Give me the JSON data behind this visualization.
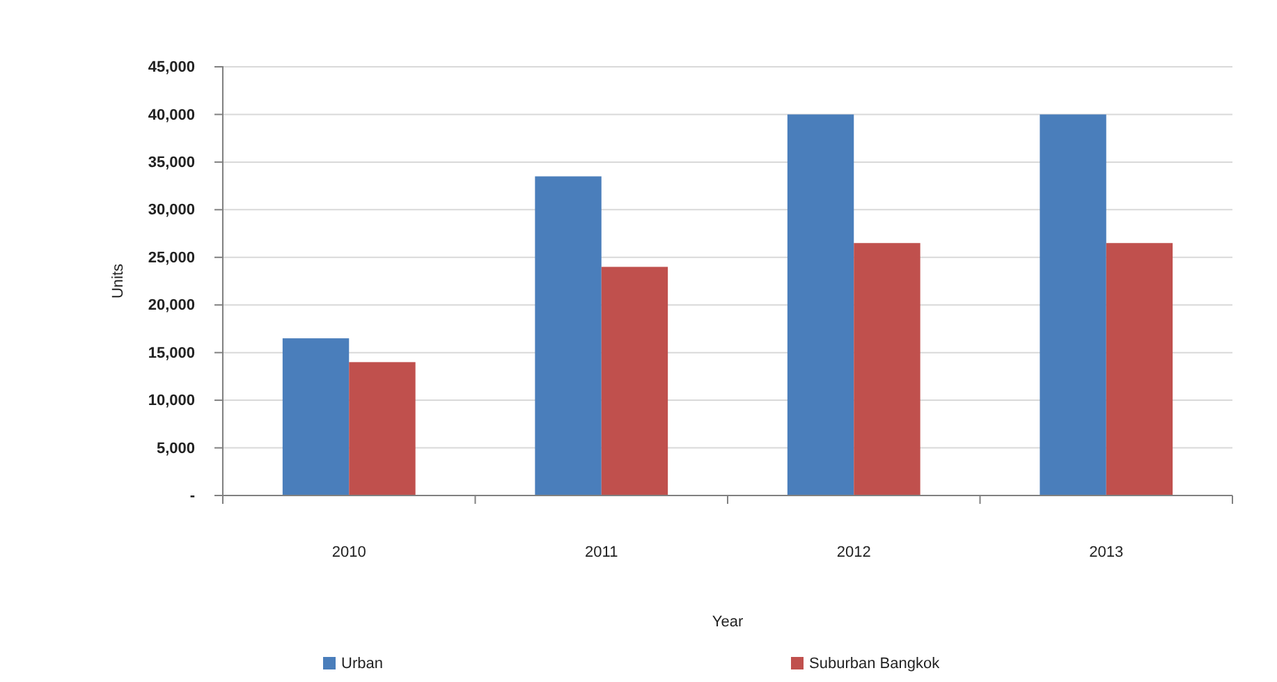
{
  "chart_data": {
    "type": "bar",
    "xlabel": "Year",
    "ylabel": "Units",
    "categories": [
      "2010",
      "2011",
      "2012",
      "2013"
    ],
    "series": [
      {
        "name": "Urban",
        "color": "#4a7ebb",
        "values": [
          16500,
          33500,
          40000,
          40000
        ]
      },
      {
        "name": "Suburban Bangkok",
        "color": "#c0504d",
        "values": [
          14000,
          24000,
          26500,
          26500
        ]
      }
    ],
    "ylim": [
      0,
      45000
    ],
    "yticks": [
      {
        "value": 0,
        "label": "-"
      },
      {
        "value": 5000,
        "label": "5,000"
      },
      {
        "value": 10000,
        "label": "10,000"
      },
      {
        "value": 15000,
        "label": "15,000"
      },
      {
        "value": 20000,
        "label": "20,000"
      },
      {
        "value": 25000,
        "label": "25,000"
      },
      {
        "value": 30000,
        "label": "30,000"
      },
      {
        "value": 35000,
        "label": "35,000"
      },
      {
        "value": 40000,
        "label": "40,000"
      },
      {
        "value": 45000,
        "label": "45,000"
      }
    ],
    "grid": "y",
    "legend": "bottom"
  }
}
